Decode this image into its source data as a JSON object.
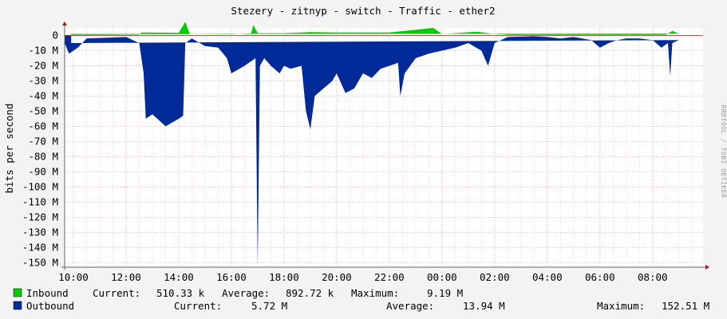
{
  "chart_data": {
    "type": "area",
    "title": "Stezery - zitnyp - switch - Traffic - ether2",
    "ylabel": "bits per second",
    "side_label": "RRDTOOL / TOBI OETIKER",
    "ylim": [
      -153,
      5
    ],
    "x_range": [
      "09:40",
      "09:55"
    ],
    "x_ticks": [
      "10:00",
      "12:00",
      "14:00",
      "16:00",
      "18:00",
      "20:00",
      "22:00",
      "00:00",
      "02:00",
      "04:00",
      "06:00",
      "08:00"
    ],
    "y_ticks": [
      "0",
      "-10 M",
      "-20 M",
      "-30 M",
      "-40 M",
      "-50 M",
      "-60 M",
      "-70 M",
      "-80 M",
      "-90 M",
      "-100 M",
      "-110 M",
      "-120 M",
      "-130 M",
      "-140 M",
      "-150 M"
    ],
    "grid": true,
    "legend_position": "bottom",
    "colors": {
      "inbound": "#00cc00",
      "outbound": "#002a97",
      "background": "#f3f3f3",
      "plot_bg": "#ffffff",
      "grid": "#e4b4b4",
      "axis": "#a01c1c"
    },
    "series": [
      {
        "name": "Inbound",
        "unit": "Mbit/s",
        "keypoints": [
          [
            "09:40",
            0.3
          ],
          [
            "12:30",
            0.5
          ],
          [
            "12:35",
            2.0
          ],
          [
            "14:00",
            1.8
          ],
          [
            "14:15",
            9
          ],
          [
            "14:25",
            1.0
          ],
          [
            "16:00",
            0.8
          ],
          [
            "16:45",
            1.5
          ],
          [
            "16:50",
            7
          ],
          [
            "17:00",
            1.5
          ],
          [
            "18:00",
            1.5
          ],
          [
            "19:00",
            2.2
          ],
          [
            "20:00",
            2.0
          ],
          [
            "22:00",
            2.0
          ],
          [
            "23:40",
            5
          ],
          [
            "00:00",
            1.0
          ],
          [
            "01:20",
            2.5
          ],
          [
            "02:00",
            1.0
          ],
          [
            "02:30",
            0.4
          ],
          [
            "08:30",
            0.4
          ],
          [
            "08:45",
            3
          ],
          [
            "09:00",
            1.2
          ],
          [
            "09:55",
            1.0
          ]
        ]
      },
      {
        "name": "Outbound",
        "unit": "Mbit/s",
        "keypoints": [
          [
            "09:40",
            -5
          ],
          [
            "09:50",
            -12
          ],
          [
            "10:10",
            -8
          ],
          [
            "10:30",
            -2
          ],
          [
            "12:00",
            -1
          ],
          [
            "12:30",
            -5
          ],
          [
            "12:40",
            -25
          ],
          [
            "12:45",
            -55
          ],
          [
            "13:00",
            -52
          ],
          [
            "13:30",
            -60
          ],
          [
            "14:00",
            -55
          ],
          [
            "14:10",
            -53
          ],
          [
            "14:15",
            -5
          ],
          [
            "14:30",
            -2
          ],
          [
            "15:00",
            -7
          ],
          [
            "15:30",
            -8
          ],
          [
            "15:50",
            -15
          ],
          [
            "16:00",
            -25
          ],
          [
            "16:30",
            -20
          ],
          [
            "16:55",
            -15
          ],
          [
            "17:00",
            -152.5
          ],
          [
            "17:05",
            -20
          ],
          [
            "17:15",
            -15
          ],
          [
            "17:30",
            -20
          ],
          [
            "17:50",
            -25
          ],
          [
            "18:00",
            -20
          ],
          [
            "18:15",
            -22
          ],
          [
            "18:40",
            -20
          ],
          [
            "18:50",
            -50
          ],
          [
            "19:00",
            -62
          ],
          [
            "19:10",
            -40
          ],
          [
            "19:30",
            -35
          ],
          [
            "19:50",
            -30
          ],
          [
            "20:00",
            -25
          ],
          [
            "20:20",
            -38
          ],
          [
            "20:40",
            -35
          ],
          [
            "21:00",
            -25
          ],
          [
            "21:20",
            -28
          ],
          [
            "21:40",
            -22
          ],
          [
            "22:00",
            -20
          ],
          [
            "22:20",
            -18
          ],
          [
            "22:25",
            -40
          ],
          [
            "22:35",
            -25
          ],
          [
            "23:00",
            -15
          ],
          [
            "23:30",
            -12
          ],
          [
            "00:00",
            -10
          ],
          [
            "00:30",
            -8
          ],
          [
            "01:00",
            -5
          ],
          [
            "01:30",
            -10
          ],
          [
            "01:45",
            -20
          ],
          [
            "02:00",
            -5
          ],
          [
            "02:30",
            -1
          ],
          [
            "03:30",
            -0.5
          ],
          [
            "04:00",
            -1
          ],
          [
            "04:30",
            -2
          ],
          [
            "05:00",
            -1
          ],
          [
            "05:40",
            -3
          ],
          [
            "06:00",
            -8
          ],
          [
            "06:20",
            -5
          ],
          [
            "06:40",
            -3
          ],
          [
            "07:00",
            -2
          ],
          [
            "07:30",
            -2
          ],
          [
            "08:00",
            -3
          ],
          [
            "08:20",
            -8
          ],
          [
            "08:35",
            -5
          ],
          [
            "08:40",
            -27
          ],
          [
            "08:45",
            -5
          ],
          [
            "09:00",
            -3
          ],
          [
            "09:55",
            -5
          ]
        ]
      }
    ],
    "legend": [
      {
        "name": "Inbound",
        "current": "510.33 k",
        "average": "892.72 k",
        "maximum": "9.19 M"
      },
      {
        "name": "Outbound",
        "current": "5.72 M",
        "average": "13.94 M",
        "maximum": "152.51 M"
      }
    ],
    "legend_labels": {
      "current": "Current:",
      "average": "Average:",
      "maximum": "Maximum:"
    }
  }
}
